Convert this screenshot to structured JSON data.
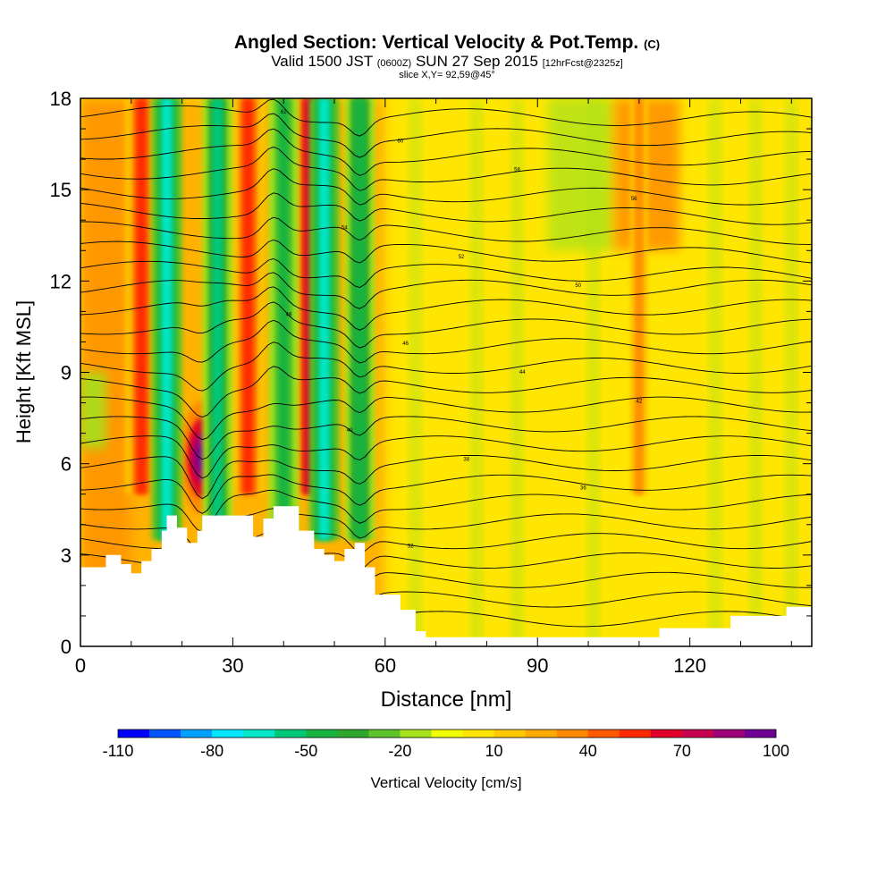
{
  "title": {
    "main": "Angled Section: Vertical Velocity & Pot.Temp.",
    "main_unit": "(C)",
    "valid_prefix": "Valid 1500 JST",
    "valid_utc": "(0600Z)",
    "valid_date": "SUN 27 Sep 2015",
    "valid_fcst": "[12hrFcst@2325z]",
    "slice": "slice X,Y= 92,59@45°"
  },
  "chart_data": {
    "type": "heatmap",
    "xlabel": "Distance [nm]",
    "ylabel": "Height [Kft MSL]",
    "xlim": [
      0,
      144
    ],
    "ylim": [
      0,
      18
    ],
    "x_ticks": [
      0,
      30,
      60,
      90,
      120
    ],
    "y_ticks": [
      0,
      3,
      6,
      9,
      12,
      15,
      18
    ],
    "colorbar": {
      "label": "Vertical Velocity [cm/s]",
      "tick_labels": [
        "-110",
        "-80",
        "-50",
        "-20",
        "10",
        "40",
        "70",
        "100"
      ],
      "tick_values": [
        -110,
        -80,
        -50,
        -20,
        10,
        40,
        70,
        100
      ],
      "colors": [
        "#0000ff",
        "#0055ff",
        "#00a0ff",
        "#00e6ff",
        "#00e6c8",
        "#00c87a",
        "#18b440",
        "#2ea82a",
        "#5cc428",
        "#a6e21e",
        "#f0ff00",
        "#ffe600",
        "#ffc800",
        "#ffaa00",
        "#ff8800",
        "#ff5a00",
        "#ff2a00",
        "#e0002a",
        "#c80050",
        "#a0007a",
        "#6e0096"
      ]
    },
    "updrafts": [
      {
        "x": 12,
        "velocity": 60
      },
      {
        "x": 24,
        "height": 6.2,
        "velocity": 100
      },
      {
        "x": 33,
        "velocity": 55
      },
      {
        "x": 45,
        "velocity": 70
      },
      {
        "x": 110,
        "velocity": 35
      }
    ],
    "downdrafts": [
      {
        "x": 17,
        "velocity": -75
      },
      {
        "x": 27,
        "velocity": -55
      },
      {
        "x": 40,
        "velocity": -45
      },
      {
        "x": 48,
        "velocity": -70
      },
      {
        "x": 55,
        "velocity": -50
      }
    ],
    "terrain": [
      [
        0,
        2.6
      ],
      [
        5,
        3.0
      ],
      [
        8,
        2.7
      ],
      [
        10,
        2.4
      ],
      [
        12,
        2.8
      ],
      [
        14,
        3.2
      ],
      [
        16,
        3.8
      ],
      [
        17,
        4.3
      ],
      [
        19,
        3.9
      ],
      [
        21,
        3.4
      ],
      [
        23,
        3.8
      ],
      [
        24,
        4.3
      ],
      [
        27,
        4.3
      ],
      [
        31,
        4.3
      ],
      [
        34,
        3.6
      ],
      [
        36,
        4.2
      ],
      [
        38,
        4.6
      ],
      [
        41,
        4.6
      ],
      [
        43,
        3.8
      ],
      [
        46,
        3.2
      ],
      [
        48,
        3.0
      ],
      [
        50,
        2.8
      ],
      [
        52,
        3.2
      ],
      [
        54,
        3.4
      ],
      [
        56,
        2.6
      ],
      [
        58,
        1.7
      ],
      [
        61,
        1.7
      ],
      [
        63,
        1.2
      ],
      [
        66,
        0.5
      ],
      [
        68,
        0.3
      ],
      [
        70,
        0.3
      ],
      [
        90,
        0.3
      ],
      [
        113,
        0.3
      ],
      [
        114,
        0.6
      ],
      [
        127,
        0.6
      ],
      [
        128,
        1.0
      ],
      [
        138,
        1.0
      ],
      [
        139,
        1.3
      ],
      [
        144,
        1.3
      ]
    ],
    "isentrope_labels": [
      "62",
      "60",
      "58",
      "56",
      "54",
      "52",
      "50",
      "48",
      "46",
      "44",
      "42",
      "40",
      "38",
      "36",
      "34",
      "32"
    ]
  }
}
